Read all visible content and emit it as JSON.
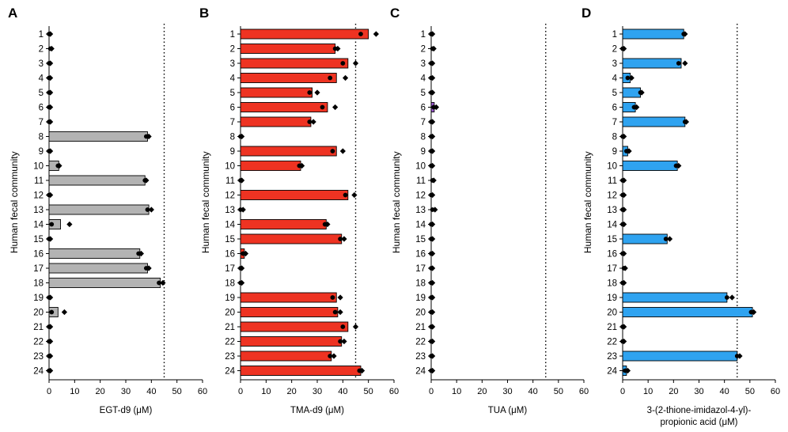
{
  "chart_data": [
    {
      "type": "bar",
      "orientation": "horizontal",
      "panel_label": "A",
      "ylabel": "Human fecal community",
      "xlabel": [
        "EGT-d9 (μM)"
      ],
      "categories": [
        "1",
        "2",
        "3",
        "4",
        "5",
        "6",
        "7",
        "8",
        "9",
        "10",
        "11",
        "12",
        "13",
        "14",
        "15",
        "16",
        "17",
        "18",
        "19",
        "20",
        "21",
        "22",
        "23",
        "24"
      ],
      "xlim": [
        0,
        60
      ],
      "xticks": [
        "0",
        "10",
        "20",
        "30",
        "40",
        "50",
        "60"
      ],
      "reference_line": 45,
      "bar_color": "#b3b3b3",
      "values": [
        0.3,
        0.3,
        0.3,
        0.3,
        0.3,
        0.3,
        0.3,
        38.5,
        0.3,
        3.8,
        37.5,
        0.3,
        39,
        4.5,
        0.3,
        35.5,
        38.5,
        43.5,
        0.3,
        3.5,
        0.3,
        0.3,
        0.3,
        0.3
      ],
      "replicates": [
        [
          0,
          0.5
        ],
        [
          0.5,
          1
        ],
        [
          0,
          0.5
        ],
        [
          0,
          0.5
        ],
        [
          0,
          0.5
        ],
        [
          0,
          0.5
        ],
        [
          0,
          0.5
        ],
        [
          38,
          39
        ],
        [
          0,
          0.5
        ],
        [
          3.5,
          4
        ],
        [
          37.5,
          38
        ],
        [
          0,
          0.5
        ],
        [
          38.5,
          40
        ],
        [
          1,
          8
        ],
        [
          0,
          0.5
        ],
        [
          35,
          36
        ],
        [
          38,
          39
        ],
        [
          43,
          44.5
        ],
        [
          0,
          0.5
        ],
        [
          1,
          6
        ],
        [
          0,
          0.5
        ],
        [
          0,
          0.5
        ],
        [
          0,
          0.5
        ],
        [
          0,
          0.5
        ]
      ]
    },
    {
      "type": "bar",
      "orientation": "horizontal",
      "panel_label": "B",
      "ylabel": "Human fecal community",
      "xlabel": [
        "TMA-d9 (μM)"
      ],
      "categories": [
        "1",
        "2",
        "3",
        "4",
        "5",
        "6",
        "7",
        "8",
        "9",
        "10",
        "11",
        "12",
        "13",
        "14",
        "15",
        "16",
        "17",
        "18",
        "19",
        "20",
        "21",
        "22",
        "23",
        "24"
      ],
      "xlim": [
        0,
        60
      ],
      "xticks": [
        "0",
        "10",
        "20",
        "30",
        "40",
        "50",
        "60"
      ],
      "reference_line": 45,
      "bar_color": "#ee3322",
      "values": [
        50,
        37,
        42,
        37.5,
        28,
        34,
        27.5,
        0.3,
        37.5,
        23.5,
        0.3,
        42,
        0.3,
        33.5,
        39.5,
        1.5,
        0.3,
        0.3,
        37.5,
        38,
        42,
        39.5,
        35.5,
        47
      ],
      "replicates": [
        [
          47,
          53
        ],
        [
          37,
          38
        ],
        [
          40,
          45
        ],
        [
          35,
          41
        ],
        [
          27,
          30
        ],
        [
          32,
          37
        ],
        [
          27,
          28.5
        ],
        [
          0,
          0.5
        ],
        [
          36,
          40
        ],
        [
          23,
          24
        ],
        [
          0,
          0.5
        ],
        [
          41,
          44.5
        ],
        [
          0,
          1
        ],
        [
          33,
          34
        ],
        [
          39,
          40.5
        ],
        [
          1,
          2
        ],
        [
          0,
          0.5
        ],
        [
          0,
          0.5
        ],
        [
          36,
          39
        ],
        [
          37,
          39
        ],
        [
          40,
          45
        ],
        [
          39,
          40.5
        ],
        [
          35,
          36.5
        ],
        [
          46.5,
          47.5
        ]
      ]
    },
    {
      "type": "bar",
      "orientation": "horizontal",
      "panel_label": "C",
      "ylabel": "Human fecal community",
      "xlabel": [
        "TUA (μM)"
      ],
      "categories": [
        "1",
        "2",
        "3",
        "4",
        "5",
        "6",
        "7",
        "8",
        "9",
        "10",
        "11",
        "12",
        "13",
        "14",
        "15",
        "16",
        "17",
        "18",
        "19",
        "20",
        "21",
        "22",
        "23",
        "24"
      ],
      "xlim": [
        0,
        60
      ],
      "xticks": [
        "0",
        "10",
        "20",
        "30",
        "40",
        "50",
        "60"
      ],
      "reference_line": 45,
      "bar_color": "#9b59d0",
      "values": [
        0.3,
        0.6,
        0.3,
        0.3,
        0.3,
        1.2,
        0.3,
        0.3,
        0.3,
        0.3,
        0.6,
        0.3,
        0.9,
        0.3,
        0.3,
        0.3,
        0.3,
        0.3,
        0.3,
        0.3,
        0.3,
        0.3,
        0.3,
        0.3
      ],
      "replicates": [
        [
          0,
          0.5
        ],
        [
          0.5,
          1
        ],
        [
          0,
          0.5
        ],
        [
          0,
          0.5
        ],
        [
          0,
          0.5
        ],
        [
          1,
          2
        ],
        [
          0,
          0.5
        ],
        [
          0,
          0.5
        ],
        [
          0,
          0.5
        ],
        [
          0,
          0.5
        ],
        [
          0.5,
          1
        ],
        [
          0,
          0.5
        ],
        [
          0.5,
          1.5
        ],
        [
          0,
          0.5
        ],
        [
          0,
          0.5
        ],
        [
          0,
          0.5
        ],
        [
          0,
          0.5
        ],
        [
          0,
          0.5
        ],
        [
          0,
          0.5
        ],
        [
          0,
          0.5
        ],
        [
          0,
          0.5
        ],
        [
          0,
          0.5
        ],
        [
          0,
          0.5
        ],
        [
          0,
          0.5
        ]
      ]
    },
    {
      "type": "bar",
      "orientation": "horizontal",
      "panel_label": "D",
      "ylabel": "Human fecal community",
      "xlabel": [
        "3-(2-thione-imidazol-4-yl)-",
        "propionic acid (μM)"
      ],
      "categories": [
        "1",
        "2",
        "3",
        "4",
        "5",
        "6",
        "7",
        "8",
        "9",
        "10",
        "11",
        "12",
        "13",
        "14",
        "15",
        "16",
        "17",
        "18",
        "19",
        "20",
        "21",
        "22",
        "23",
        "24"
      ],
      "xlim": [
        0,
        60
      ],
      "xticks": [
        "0",
        "10",
        "20",
        "30",
        "40",
        "50",
        "60"
      ],
      "reference_line": 45,
      "bar_color": "#2fa3f0",
      "values": [
        24,
        0.3,
        23,
        3,
        7,
        5,
        24.5,
        0.3,
        2,
        21.5,
        0.3,
        0.3,
        0.3,
        0.3,
        17.5,
        0.3,
        0.8,
        0.3,
        41,
        51,
        0.3,
        0.3,
        45,
        1.5
      ],
      "replicates": [
        [
          24,
          24.5
        ],
        [
          0,
          0.5
        ],
        [
          22,
          24.5
        ],
        [
          2,
          3.5
        ],
        [
          7,
          7.5
        ],
        [
          4.5,
          5.5
        ],
        [
          24.5,
          25
        ],
        [
          0,
          0.5
        ],
        [
          1.5,
          2.5
        ],
        [
          21,
          22
        ],
        [
          0,
          0.5
        ],
        [
          0,
          0.5
        ],
        [
          0,
          0.5
        ],
        [
          0,
          0.5
        ],
        [
          17,
          18.5
        ],
        [
          0,
          0.5
        ],
        [
          0.5,
          1
        ],
        [
          0,
          0.5
        ],
        [
          41,
          43
        ],
        [
          50.5,
          51.5
        ],
        [
          0,
          0.5
        ],
        [
          0,
          0.5
        ],
        [
          45,
          46
        ],
        [
          1,
          2
        ]
      ]
    }
  ]
}
